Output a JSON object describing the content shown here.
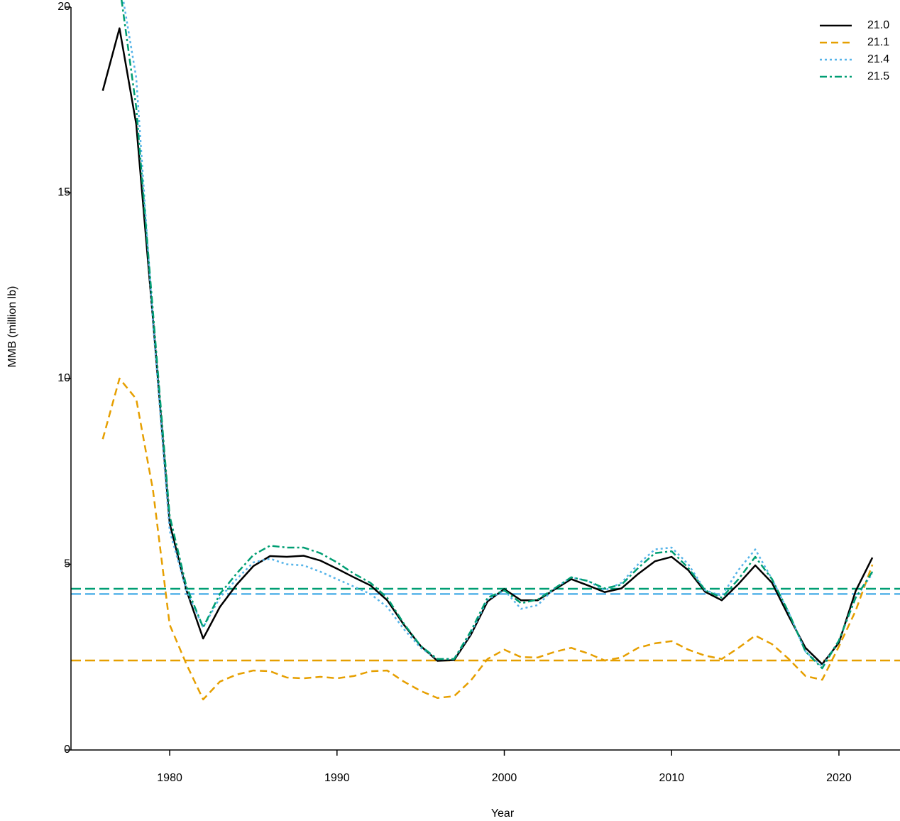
{
  "chart_data": {
    "type": "line",
    "xlabel": "Year",
    "ylabel": "MMB (million lb)",
    "x": [
      1976,
      1977,
      1978,
      1979,
      1980,
      1981,
      1982,
      1983,
      1984,
      1985,
      1986,
      1987,
      1988,
      1989,
      1990,
      1991,
      1992,
      1993,
      1994,
      1995,
      1996,
      1997,
      1998,
      1999,
      2000,
      2001,
      2002,
      2003,
      2004,
      2005,
      2006,
      2007,
      2008,
      2009,
      2010,
      2011,
      2012,
      2013,
      2014,
      2015,
      2016,
      2017,
      2018,
      2019,
      2020,
      2021,
      2022
    ],
    "series": [
      {
        "name": "21.0",
        "color": "#000000",
        "dash": "none",
        "values": [
          17.75,
          19.43,
          16.85,
          11.6,
          6.1,
          4.3,
          3.0,
          3.85,
          4.45,
          4.95,
          5.22,
          5.2,
          5.23,
          5.1,
          4.88,
          4.65,
          4.43,
          4.03,
          3.37,
          2.8,
          2.4,
          2.42,
          3.1,
          4.0,
          4.33,
          4.03,
          4.03,
          4.32,
          4.6,
          4.43,
          4.25,
          4.35,
          4.74,
          5.08,
          5.2,
          4.84,
          4.26,
          4.03,
          4.47,
          4.97,
          4.5,
          3.6,
          2.75,
          2.31,
          2.89,
          4.28,
          5.18
        ]
      },
      {
        "name": "21.1",
        "color": "#E69F00",
        "dash": "10,6",
        "reference": 2.41,
        "values": [
          8.37,
          10.0,
          9.45,
          7.0,
          3.37,
          2.31,
          1.36,
          1.84,
          2.03,
          2.14,
          2.12,
          1.95,
          1.93,
          1.97,
          1.93,
          1.99,
          2.12,
          2.14,
          1.84,
          1.59,
          1.4,
          1.45,
          1.87,
          2.45,
          2.7,
          2.5,
          2.49,
          2.64,
          2.75,
          2.6,
          2.41,
          2.49,
          2.75,
          2.87,
          2.93,
          2.7,
          2.54,
          2.45,
          2.75,
          3.08,
          2.85,
          2.45,
          1.99,
          1.89,
          2.79,
          3.75,
          4.99
        ]
      },
      {
        "name": "21.4",
        "color": "#56B4E9",
        "dash": "3,4",
        "reference": 4.2,
        "values": [
          null,
          20.8,
          18.1,
          11.5,
          5.9,
          4.3,
          3.3,
          4.1,
          4.6,
          5.05,
          5.15,
          5.0,
          4.97,
          4.8,
          4.6,
          4.4,
          4.2,
          3.85,
          3.25,
          2.75,
          2.45,
          2.45,
          3.15,
          4.05,
          4.3,
          3.8,
          3.9,
          4.35,
          4.65,
          4.55,
          4.3,
          4.5,
          5.0,
          5.4,
          5.45,
          5.0,
          4.3,
          4.15,
          4.85,
          5.4,
          4.6,
          3.7,
          2.65,
          2.25,
          2.95,
          4.1,
          4.75
        ]
      },
      {
        "name": "21.5",
        "color": "#009E73",
        "dash": "10,4,3,4",
        "reference": 4.34,
        "values": [
          null,
          20.6,
          17.3,
          11.8,
          6.3,
          4.4,
          3.3,
          4.2,
          4.75,
          5.25,
          5.5,
          5.45,
          5.45,
          5.3,
          5.05,
          4.75,
          4.5,
          4.1,
          3.4,
          2.8,
          2.45,
          2.45,
          3.2,
          4.1,
          4.3,
          3.95,
          4.05,
          4.35,
          4.65,
          4.55,
          4.35,
          4.45,
          4.9,
          5.3,
          5.35,
          4.9,
          4.3,
          4.1,
          4.6,
          5.2,
          4.6,
          3.7,
          2.65,
          2.2,
          2.95,
          4.1,
          4.8
        ]
      }
    ],
    "xlim": [
      1974.1,
      2023.65
    ],
    "xticks": [
      1980,
      1990,
      2000,
      2010,
      2020
    ],
    "ylim": [
      0,
      20
    ],
    "yticks": [
      0,
      5,
      10,
      15,
      20
    ],
    "legend": "top-right"
  }
}
